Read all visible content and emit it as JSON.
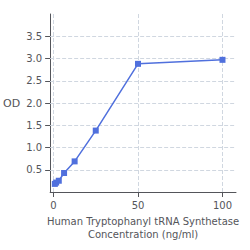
{
  "chart_data": {
    "type": "line",
    "x": [
      0.781,
      1.563,
      3.125,
      6.25,
      12.5,
      25,
      50,
      100
    ],
    "values": [
      0.182,
      0.212,
      0.253,
      0.427,
      0.688,
      1.38,
      2.88,
      2.97
    ],
    "xlabel": "Human Tryptophanyl tRNA Synthetase\nConcentration (ng/ml)",
    "ylabel": "OD",
    "xlim": [
      -2,
      108
    ],
    "ylim": [
      0,
      4.0
    ],
    "xticks": [
      0,
      50,
      100
    ],
    "yticks": [
      0.5,
      {
        "value": 1.0,
        "label": "1.0"
      },
      1.5,
      {
        "value": 2.0,
        "label": "2.0"
      },
      2.5,
      {
        "value": 3.0,
        "label": "3.0"
      },
      3.5
    ],
    "grid": true,
    "marker": "square"
  }
}
